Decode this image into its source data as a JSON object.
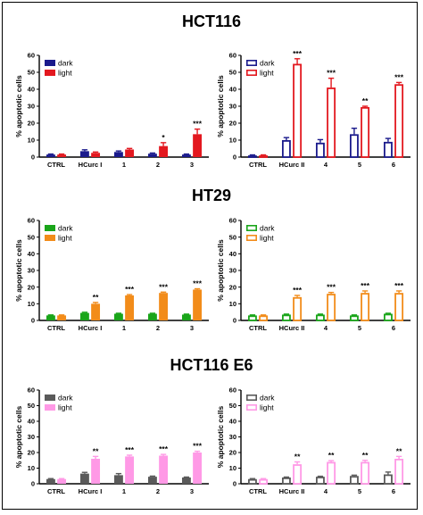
{
  "panel_titles": [
    "HCT116",
    "HT29",
    "HCT116 E6"
  ],
  "colors": {
    "hct116_dark": "#1a1a8c",
    "hct116_light": "#e3181f",
    "ht29_dark": "#1aa51a",
    "ht29_light": "#f28c1a",
    "e6_dark": "#5a5a5a",
    "e6_light": "#ff99e6"
  },
  "chart_data": [
    {
      "type": "bar",
      "group": "HCT116",
      "style": "filled",
      "categories": [
        "CTRL",
        "HCurc I",
        "1",
        "2",
        "3"
      ],
      "ylabel": "% apoptotic cells",
      "ylim": [
        0,
        60
      ],
      "yticks": [
        0,
        10,
        20,
        30,
        40,
        50,
        60
      ],
      "legend": [
        "dark",
        "light"
      ],
      "legend_position": "top-left",
      "series": [
        {
          "name": "dark",
          "values": [
            1.5,
            3.5,
            3,
            2,
            1.5
          ],
          "errors": [
            0.3,
            0.8,
            0.6,
            0.4,
            0.3
          ]
        },
        {
          "name": "light",
          "values": [
            1.5,
            2.5,
            4.5,
            6.5,
            13.5
          ],
          "errors": [
            0.3,
            0.5,
            0.6,
            2,
            3
          ]
        }
      ],
      "significance": [
        "",
        "",
        "",
        "*",
        "***"
      ]
    },
    {
      "type": "bar",
      "group": "HCT116",
      "style": "open",
      "categories": [
        "CTRL",
        "HCurc II",
        "4",
        "5",
        "6"
      ],
      "ylabel": "% apoptotic cells",
      "ylim": [
        0,
        60
      ],
      "yticks": [
        0,
        10,
        20,
        30,
        40,
        50,
        60
      ],
      "legend": [
        "dark",
        "light"
      ],
      "legend_position": "top-left",
      "series": [
        {
          "name": "dark",
          "values": [
            1,
            10,
            8.5,
            13.5,
            9
          ],
          "errors": [
            0.3,
            1.5,
            1.8,
            3.5,
            2
          ]
        },
        {
          "name": "light",
          "values": [
            1,
            55,
            41,
            29.5,
            43
          ],
          "errors": [
            0.3,
            3,
            5.5,
            0.5,
            1
          ]
        }
      ],
      "significance": [
        "",
        "***",
        "***",
        "**",
        "***"
      ]
    },
    {
      "type": "bar",
      "group": "HT29",
      "style": "filled",
      "categories": [
        "CTRL",
        "HCurc I",
        "1",
        "2",
        "3"
      ],
      "ylabel": "% apoptotic cells",
      "ylim": [
        0,
        60
      ],
      "yticks": [
        0,
        10,
        20,
        30,
        40,
        50,
        60
      ],
      "legend": [
        "dark",
        "light"
      ],
      "legend_position": "top-left",
      "series": [
        {
          "name": "dark",
          "values": [
            3,
            4.5,
            4,
            4,
            3.5
          ],
          "errors": [
            0.3,
            0.4,
            0.3,
            0.3,
            0.3
          ]
        },
        {
          "name": "light",
          "values": [
            3,
            10,
            15,
            16.5,
            18.5
          ],
          "errors": [
            0.3,
            0.8,
            0.5,
            0.5,
            0.5
          ]
        }
      ],
      "significance": [
        "",
        "**",
        "***",
        "***",
        "***"
      ]
    },
    {
      "type": "bar",
      "group": "HT29",
      "style": "open",
      "categories": [
        "CTRL",
        "HCurc II",
        "4",
        "5",
        "6"
      ],
      "ylabel": "% apoptotic cells",
      "ylim": [
        0,
        60
      ],
      "yticks": [
        0,
        10,
        20,
        30,
        40,
        50,
        60
      ],
      "legend": [
        "dark",
        "light"
      ],
      "legend_position": "top-left",
      "series": [
        {
          "name": "dark",
          "values": [
            3,
            3.5,
            3.5,
            3,
            4
          ],
          "errors": [
            0.3,
            0.3,
            0.3,
            0.3,
            0.3
          ]
        },
        {
          "name": "light",
          "values": [
            3,
            14,
            16,
            16.5,
            16.5
          ],
          "errors": [
            0.3,
            1,
            0.8,
            1.2,
            1.2
          ]
        }
      ],
      "significance": [
        "",
        "***",
        "***",
        "***",
        "***"
      ]
    },
    {
      "type": "bar",
      "group": "HCT116 E6",
      "style": "filled",
      "categories": [
        "CTRL",
        "HCurc I",
        "1",
        "2",
        "3"
      ],
      "ylabel": "% apoptotic cells",
      "ylim": [
        0,
        60
      ],
      "yticks": [
        0,
        10,
        20,
        30,
        40,
        50,
        60
      ],
      "legend": [
        "dark",
        "light"
      ],
      "legend_position": "top-left",
      "series": [
        {
          "name": "dark",
          "values": [
            3,
            6.5,
            5.5,
            4.5,
            4
          ],
          "errors": [
            0.3,
            0.8,
            1,
            0.4,
            0.3
          ]
        },
        {
          "name": "light",
          "values": [
            3,
            16,
            17.5,
            18,
            20
          ],
          "errors": [
            0.3,
            1.5,
            0.8,
            0.8,
            0.8
          ]
        }
      ],
      "significance": [
        "",
        "**",
        "***",
        "***",
        "***"
      ]
    },
    {
      "type": "bar",
      "group": "HCT116 E6",
      "style": "open",
      "categories": [
        "CTRL",
        "HCurc II",
        "4",
        "5",
        "6"
      ],
      "ylabel": "% apoptotic cells",
      "ylim": [
        0,
        60
      ],
      "yticks": [
        0,
        10,
        20,
        30,
        40,
        50,
        60
      ],
      "legend": [
        "dark",
        "light"
      ],
      "legend_position": "top-left",
      "series": [
        {
          "name": "dark",
          "values": [
            3,
            4,
            4.5,
            5,
            6
          ],
          "errors": [
            0.3,
            0.3,
            0.3,
            0.5,
            1.5
          ]
        },
        {
          "name": "light",
          "values": [
            3,
            12.5,
            14,
            14,
            16
          ],
          "errors": [
            0.3,
            1.5,
            0.8,
            1,
            1.5
          ]
        }
      ],
      "significance": [
        "",
        "**",
        "**",
        "**",
        "**"
      ]
    }
  ]
}
